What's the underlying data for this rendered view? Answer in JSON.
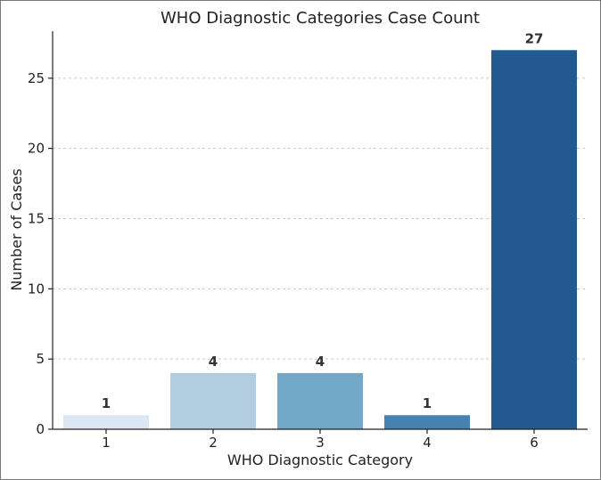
{
  "chart_data": {
    "type": "bar",
    "title": "WHO Diagnostic Categories Case Count",
    "xlabel": "WHO Diagnostic Category",
    "ylabel": "Number of Cases",
    "categories": [
      "1",
      "2",
      "3",
      "4",
      "6"
    ],
    "values": [
      1,
      4,
      4,
      1,
      27
    ],
    "data_labels": [
      "1",
      "4",
      "4",
      "1",
      "27"
    ],
    "colors": [
      "#dce7f4",
      "#b3cde0",
      "#73a7c8",
      "#4681b2",
      "#225a90"
    ],
    "ylim": [
      0,
      28.35
    ],
    "yticks": [
      0,
      5,
      10,
      15,
      20,
      25
    ],
    "ytick_labels": [
      "0",
      "5",
      "10",
      "15",
      "20",
      "25"
    ],
    "grid": "y-dashed",
    "legend": "none"
  }
}
